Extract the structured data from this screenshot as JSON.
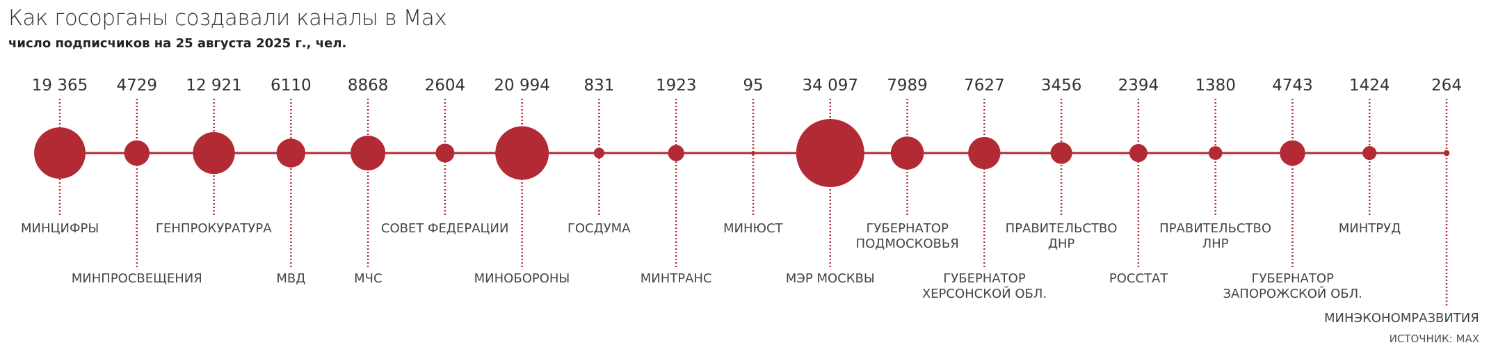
{
  "chart_data": {
    "type": "bubble",
    "title": "Как госорганы создавали каналы в Max",
    "subtitle": "число подписчиков на 25 августа 2025 г., чел.",
    "source": "ИСТОЧНИК: MAX",
    "color": "#b22a33",
    "categories": [
      "МИНЦИФРЫ",
      "МИНПРОСВЕЩЕНИЯ",
      "ГЕНПРОКУРАТУРА",
      "МВД",
      "МЧС",
      "СОВЕТ ФЕДЕРАЦИИ",
      "МИНОБОРОНЫ",
      "ГОСДУМА",
      "МИНТРАНС",
      "МИНЮСТ",
      "МЭР МОСКВЫ",
      "ГУБЕРНАТОР\nПОДМОСКОВЬЯ",
      "ГУБЕРНАТОР\nХЕРСОНСКОЙ ОБЛ.",
      "ПРАВИТЕЛЬСТВО\nДНР",
      "РОССТАТ",
      "ПРАВИТЕЛЬСТВО\nЛНР",
      "ГУБЕРНАТОР\nЗАПОРОЖСКОЙ ОБЛ.",
      "МИНТРУД",
      "МИНЭКОНОМРАЗВИТИЯ"
    ],
    "values": [
      19365,
      4729,
      12921,
      6110,
      8868,
      2604,
      20994,
      831,
      1923,
      95,
      34097,
      7989,
      7627,
      3456,
      2394,
      1380,
      4743,
      1424,
      264
    ],
    "value_labels": [
      "19 365",
      "4729",
      "12 921",
      "6110",
      "8868",
      "2604",
      "20 994",
      "831",
      "1923",
      "95",
      "34 097",
      "7989",
      "7627",
      "3456",
      "2394",
      "1380",
      "4743",
      "1424",
      "264"
    ]
  }
}
